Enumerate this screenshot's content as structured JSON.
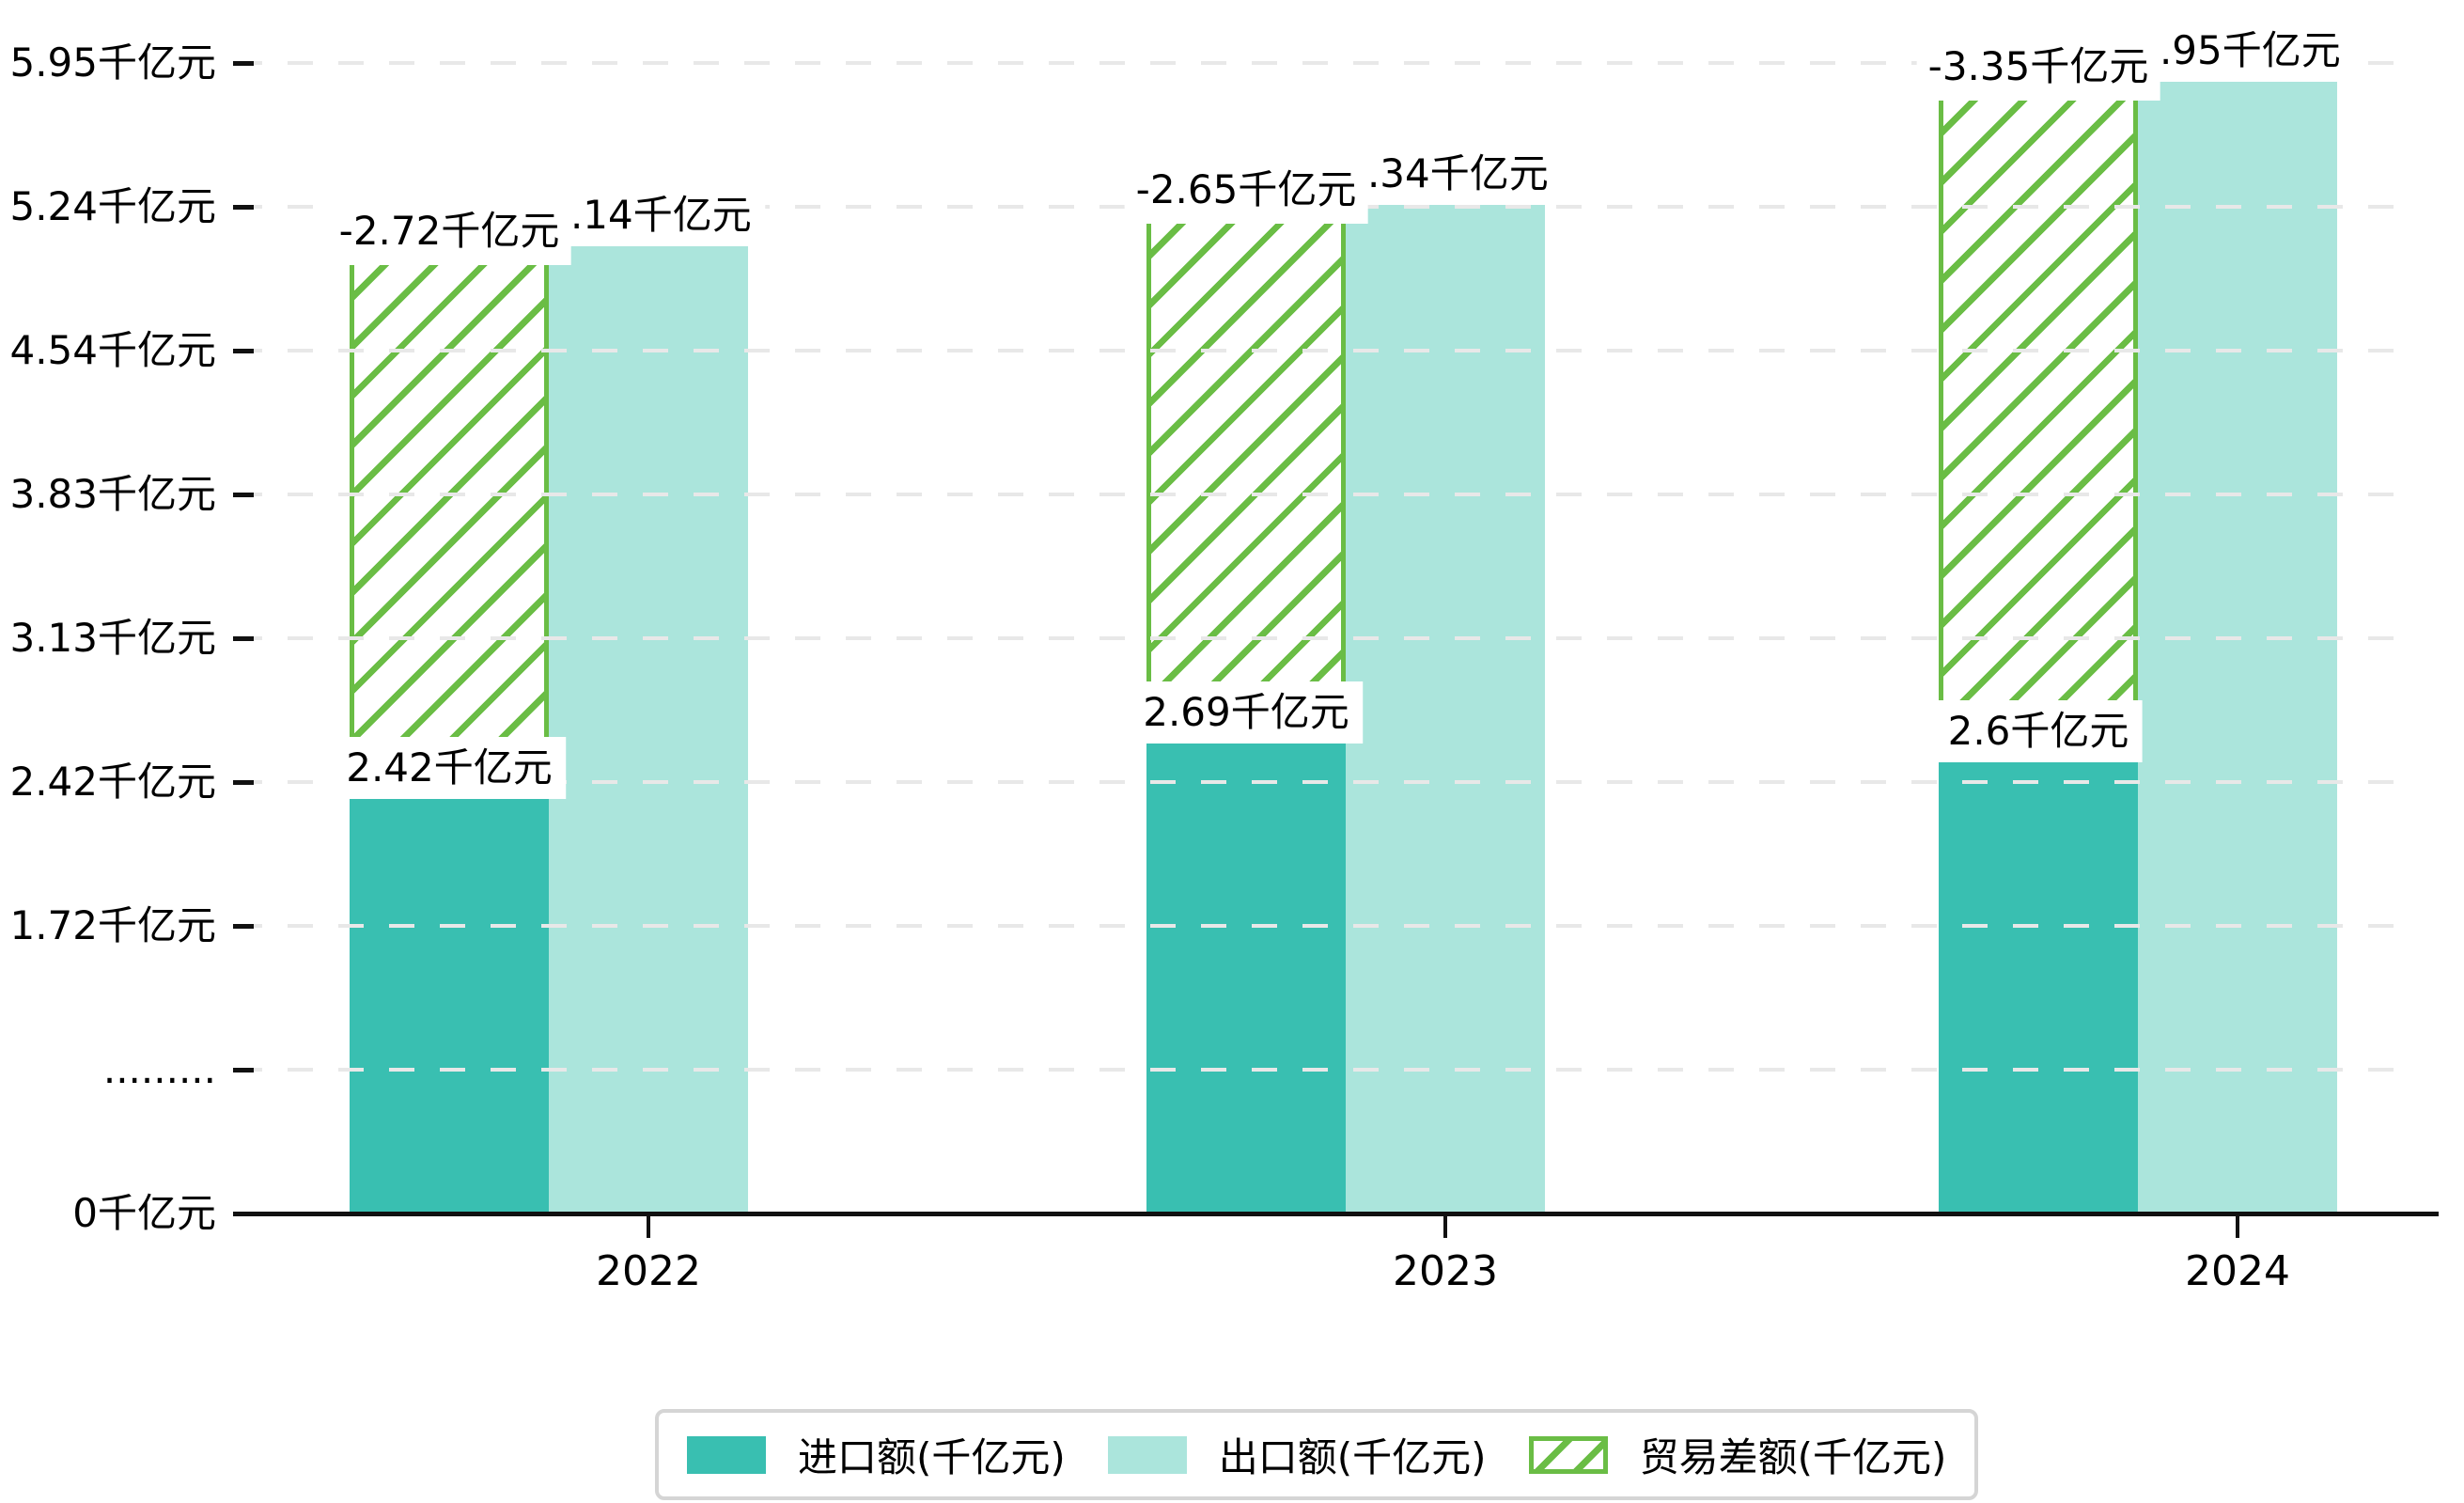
{
  "chart_data": {
    "type": "bar",
    "title": "",
    "categories": [
      "2022",
      "2023",
      "2024"
    ],
    "series": [
      {
        "name": "进口额(千亿元)",
        "role": "import",
        "values": [
          2.42,
          2.69,
          2.6
        ],
        "labels": [
          "2.42千亿元",
          "2.69千亿元",
          "2.6千亿元"
        ],
        "color": "#39bfb1",
        "style": "solid"
      },
      {
        "name": "出口额(千亿元)",
        "role": "export",
        "values": [
          5.14,
          5.34,
          5.95
        ],
        "labels": [
          "5.14千亿元",
          "5.34千亿元",
          "5.95千亿元"
        ],
        "color": "#abe5dc",
        "style": "solid"
      },
      {
        "name": "贸易差额(千亿元)",
        "role": "balance",
        "values": [
          -2.72,
          -2.65,
          -3.35
        ],
        "labels": [
          "-2.72千亿元",
          "-2.65千亿元",
          "-3.35千亿元"
        ],
        "color": "#6abd45",
        "style": "hatch",
        "note_span": "stacked from import top to export top"
      }
    ],
    "y_axis": {
      "unit": "千亿元",
      "tick_labels": [
        "5.95千亿元",
        "5.24千亿元",
        "4.54千亿元",
        "3.83千亿元",
        "3.13千亿元",
        "2.42千亿元",
        "1.72千亿元",
        ".........",
        "0千亿元"
      ],
      "tick_values": [
        5.95,
        5.24,
        4.54,
        3.83,
        3.13,
        2.42,
        1.72,
        null,
        0
      ]
    },
    "x_axis": {
      "tick_labels": [
        "2022",
        "2023",
        "2024"
      ]
    },
    "legend": {
      "position": "bottom",
      "items": [
        "进口额(千亿元)",
        "出口额(千亿元)",
        "贸易差额(千亿元)"
      ]
    },
    "grid": true,
    "colors": {
      "import_bar": "#39bfb1",
      "export_bar": "#abe5dc",
      "balance_hatch": "#6abd45",
      "gridline": "#e8e8e8",
      "axis": "#111111",
      "text": "#000000",
      "legend_border": "#d5d5d5",
      "background": "#ffffff"
    }
  }
}
